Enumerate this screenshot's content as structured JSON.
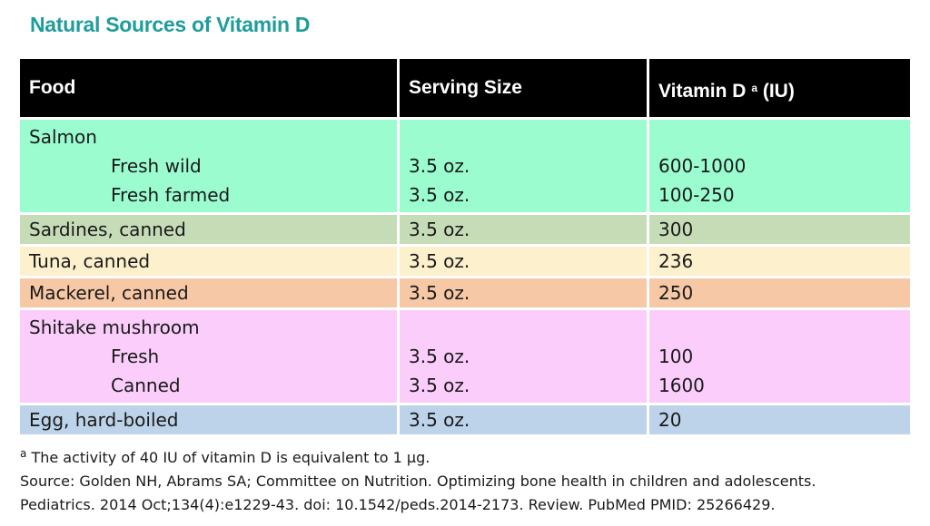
{
  "title": "Natural Sources of Vitamin D",
  "headers": {
    "food": "Food",
    "serving": "Serving Size",
    "vitamin": "Vitamin D",
    "vitamin_sup": "a",
    "vitamin_unit": "(IU)"
  },
  "colors": {
    "salmon": "#9bfcd0",
    "sardines": "#c6dcb7",
    "tuna": "#fdf0cd",
    "mackerel": "#f6c8a6",
    "shitake": "#facdfb",
    "egg": "#bdd3ea"
  },
  "rows": {
    "salmon": {
      "food": "Salmon",
      "sub": [
        {
          "food": "Fresh wild",
          "serving": "3.5 oz.",
          "value": "600-1000"
        },
        {
          "food": "Fresh farmed",
          "serving": "3.5 oz.",
          "value": "100-250"
        }
      ]
    },
    "sardines": {
      "food": "Sardines, canned",
      "serving": "3.5 oz.",
      "value": "300"
    },
    "tuna": {
      "food": "Tuna, canned",
      "serving": "3.5 oz.",
      "value": "236"
    },
    "mackerel": {
      "food": "Mackerel, canned",
      "serving": "3.5 oz.",
      "value": "250"
    },
    "shitake": {
      "food": "Shitake mushroom",
      "sub": [
        {
          "food": "Fresh",
          "serving": "3.5 oz.",
          "value": "100"
        },
        {
          "food": "Canned",
          "serving": "3.5 oz.",
          "value": "1600"
        }
      ]
    },
    "egg": {
      "food": "Egg, hard-boiled",
      "serving": "3.5 oz.",
      "value": "20"
    }
  },
  "footnote": {
    "sup": "a",
    "text": "The activity of 40 IU of vitamin D is equivalent to 1 µg."
  },
  "source_line1": "Source: Golden NH, Abrams SA; Committee on Nutrition. Optimizing bone health in children and adolescents.",
  "source_line2": "Pediatrics. 2014 Oct;134(4):e1229-43. doi: 10.1542/peds.2014-2173. Review. PubMed PMID: 25266429."
}
